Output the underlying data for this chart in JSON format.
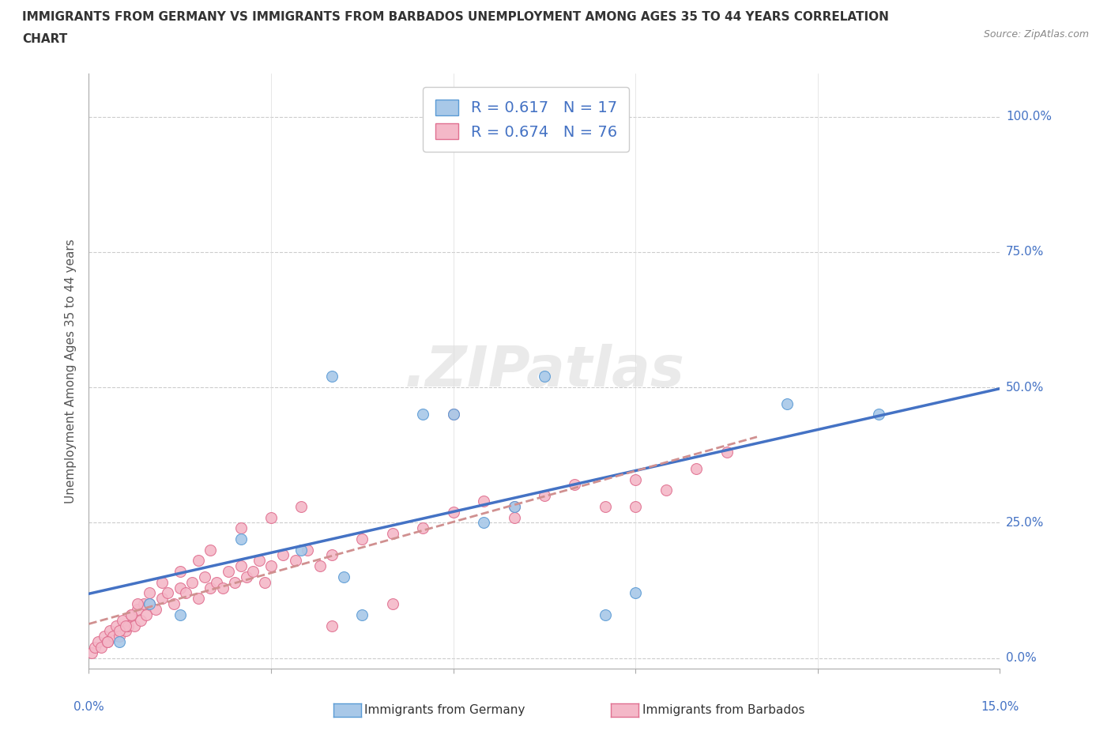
{
  "title_line1": "IMMIGRANTS FROM GERMANY VS IMMIGRANTS FROM BARBADOS UNEMPLOYMENT AMONG AGES 35 TO 44 YEARS CORRELATION",
  "title_line2": "CHART",
  "source_text": "Source: ZipAtlas.com",
  "ylabel": "Unemployment Among Ages 35 to 44 years",
  "ytick_values": [
    0,
    25,
    50,
    75,
    100
  ],
  "xlim": [
    0,
    15
  ],
  "ylim": [
    -2,
    108
  ],
  "germany_R": "0.617",
  "germany_N": "17",
  "barbados_R": "0.674",
  "barbados_N": "76",
  "germany_scatter_color": "#a8c8e8",
  "germany_edge_color": "#5b9bd5",
  "barbados_scatter_color": "#f4b8c8",
  "barbados_edge_color": "#e07090",
  "germany_line_color": "#4472c4",
  "barbados_line_color": "#d09090",
  "legend_label_germany": "Immigrants from Germany",
  "legend_label_barbados": "Immigrants from Barbados",
  "watermark": ".ZIPatlas",
  "germany_scatter_x": [
    0.5,
    1.0,
    1.5,
    2.5,
    4.0,
    4.5,
    5.5,
    6.0,
    7.0,
    7.5,
    8.5,
    9.0,
    11.5,
    13.0,
    4.2,
    6.5,
    3.5
  ],
  "germany_scatter_y": [
    3,
    10,
    8,
    22,
    52,
    8,
    45,
    45,
    28,
    52,
    8,
    12,
    47,
    45,
    15,
    25,
    20
  ],
  "barbados_scatter_x": [
    0.05,
    0.1,
    0.15,
    0.2,
    0.25,
    0.3,
    0.35,
    0.4,
    0.45,
    0.5,
    0.55,
    0.6,
    0.65,
    0.7,
    0.75,
    0.8,
    0.85,
    0.9,
    0.95,
    1.0,
    1.1,
    1.2,
    1.3,
    1.4,
    1.5,
    1.6,
    1.7,
    1.8,
    1.9,
    2.0,
    2.1,
    2.2,
    2.3,
    2.4,
    2.5,
    2.6,
    2.7,
    2.8,
    2.9,
    3.0,
    3.2,
    3.4,
    3.6,
    3.8,
    4.0,
    4.5,
    5.0,
    5.5,
    6.0,
    6.5,
    7.0,
    7.5,
    8.0,
    8.5,
    9.0,
    9.5,
    10.0,
    10.5,
    0.3,
    0.5,
    0.6,
    0.7,
    0.8,
    1.0,
    1.2,
    1.5,
    1.8,
    2.0,
    2.5,
    3.0,
    3.5,
    4.0,
    5.0,
    6.0,
    7.0,
    9.0
  ],
  "barbados_scatter_y": [
    1,
    2,
    3,
    2,
    4,
    3,
    5,
    4,
    6,
    4,
    7,
    5,
    6,
    8,
    6,
    9,
    7,
    10,
    8,
    10,
    9,
    11,
    12,
    10,
    13,
    12,
    14,
    11,
    15,
    13,
    14,
    13,
    16,
    14,
    17,
    15,
    16,
    18,
    14,
    17,
    19,
    18,
    20,
    17,
    19,
    22,
    23,
    24,
    27,
    29,
    28,
    30,
    32,
    28,
    33,
    31,
    35,
    38,
    3,
    5,
    6,
    8,
    10,
    12,
    14,
    16,
    18,
    20,
    24,
    26,
    28,
    6,
    10,
    45,
    26,
    28
  ]
}
